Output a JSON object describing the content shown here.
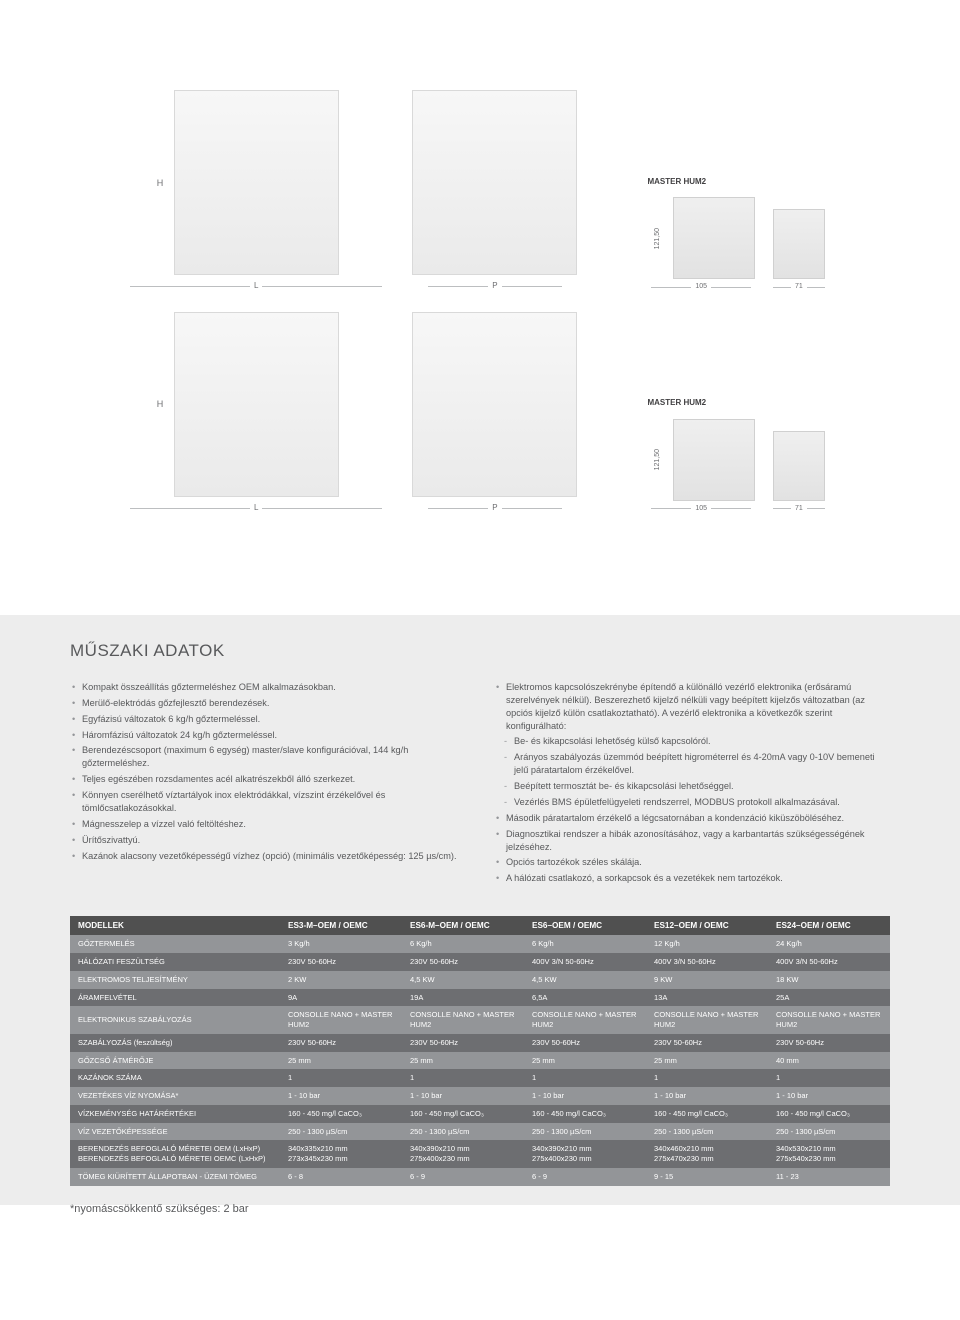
{
  "diagrams": {
    "h_label": "H",
    "l_label": "L",
    "p_label": "P",
    "vertical_dim": "121,50",
    "dim_105": "105",
    "dim_71": "71",
    "controller_title": "MASTER HUM2"
  },
  "section_title": "MŰSZAKI ADATOK",
  "left_bullets": [
    "Kompakt összeállítás gőztermeléshez OEM alkalmazásokban.",
    "Merülő-elektródás gőzfejlesztő berendezések.",
    "Egyfázisú változatok 6 kg/h gőztermeléssel.",
    "Háromfázisú változatok 24 kg/h gőztermeléssel.",
    "Berendezéscsoport (maximum 6 egység) master/slave konfigurációval, 144 kg/h gőztermeléshez.",
    "Teljes egészében rozsdamentes acél alkatrészekből álló szerkezet.",
    "Könnyen cserélhető víztartályok inox elektródákkal, vízszint érzékelővel és tömlőcsatlakozásokkal.",
    "Mágnesszelep a vízzel való feltöltéshez.",
    "Ürítőszivattyú.",
    "Kazánok alacsony vezetőképességű vízhez (opció) (minimális vezetőképesség: 125 µs/cm)."
  ],
  "right_bullets_main": [
    "Elektromos kapcsolószekrénybe építendő a különálló vezérlő elektronika (erősáramú szerelvények nélkül). Beszerezhető kijelző nélküli vagy beépített kijelzős változatban (az opciós kijelző külön csatlakoztatható). A vezérlő elektronika a következők szerint konfigurálható:"
  ],
  "right_sub": [
    "Be- és kikapcsolási lehetőség külső kapcsolóról.",
    "Arányos szabályozás üzemmód beépített higrométerrel és 4-20mA vagy 0-10V bemeneti jelű páratartalom érzékelővel.",
    "Beépített termosztát be- és kikapcsolási lehetőséggel.",
    "Vezérlés BMS épületfelügyeleti rendszerrel, MODBUS protokoll alkalmazásával."
  ],
  "right_bullets_after": [
    "Második páratartalom érzékelő a légcsatornában a kondenzáció kiküszöböléséhez.",
    "Diagnosztikai rendszer a hibák azonosításához, vagy a karbantartás szükségességének jelzéséhez.",
    "Opciós tartozékok széles skálája.",
    "A hálózati csatlakozó, a sorkapcsok és a vezetékek nem tartozékok."
  ],
  "table": {
    "header_label": "MODELLEK",
    "models": [
      "ES3-M–OEM / OEMC",
      "ES6-M–OEM / OEMC",
      "ES6–OEM / OEMC",
      "ES12–OEM / OEMC",
      "ES24–OEM / OEMC"
    ],
    "rows": [
      {
        "label": "GŐZTERMELÉS",
        "vals": [
          "3 Kg/h",
          "6 Kg/h",
          "6 Kg/h",
          "12 Kg/h",
          "24 Kg/h"
        ],
        "shade": "light"
      },
      {
        "label": "HÁLÓZATI FESZÜLTSÉG",
        "vals": [
          "230V 50-60Hz",
          "230V 50-60Hz",
          "400V 3/N 50-60Hz",
          "400V 3/N 50-60Hz",
          "400V 3/N 50-60Hz"
        ],
        "shade": "dark"
      },
      {
        "label": "ELEKTROMOS TELJESÍTMÉNY",
        "vals": [
          "2 KW",
          "4,5 KW",
          "4,5 KW",
          "9 KW",
          "18 KW"
        ],
        "shade": "light"
      },
      {
        "label": "ÁRAMFELVÉTEL",
        "vals": [
          "9A",
          "19A",
          "6,5A",
          "13A",
          "25A"
        ],
        "shade": "dark"
      },
      {
        "label": "ELEKTRONIKUS SZABÁLYOZÁS",
        "vals": [
          "CONSOLLE NANO + MASTER HUM2",
          "CONSOLLE NANO + MASTER HUM2",
          "CONSOLLE NANO + MASTER HUM2",
          "CONSOLLE NANO + MASTER HUM2",
          "CONSOLLE NANO + MASTER HUM2"
        ],
        "shade": "light"
      },
      {
        "label": "SZABÁLYOZÁS (feszültség)",
        "vals": [
          "230V 50-60Hz",
          "230V 50-60Hz",
          "230V 50-60Hz",
          "230V 50-60Hz",
          "230V 50-60Hz"
        ],
        "shade": "dark"
      },
      {
        "label": "GŐZCSŐ ÁTMÉRŐJE",
        "vals": [
          "25 mm",
          "25 mm",
          "25 mm",
          "25 mm",
          "40 mm"
        ],
        "shade": "light"
      },
      {
        "label": "KAZÁNOK SZÁMA",
        "vals": [
          "1",
          "1",
          "1",
          "1",
          "1"
        ],
        "shade": "dark"
      },
      {
        "label": "VEZETÉKES VÍZ NYOMÁSA*",
        "vals": [
          "1 - 10 bar",
          "1 - 10 bar",
          "1 - 10 bar",
          "1 - 10 bar",
          "1 - 10 bar"
        ],
        "shade": "light"
      },
      {
        "label": "VÍZKEMÉNYSÉG HATÁRÉRTÉKEI",
        "vals": [
          "160 - 450 mg/l CaCO₃",
          "160 - 450 mg/l CaCO₃",
          "160 - 450 mg/l CaCO₃",
          "160 - 450 mg/l CaCO₃",
          "160 - 450 mg/l CaCO₃"
        ],
        "shade": "dark"
      },
      {
        "label": "VÍZ VEZETŐKÉPESSÉGE",
        "vals": [
          "250 - 1300 µS/cm",
          "250 - 1300 µS/cm",
          "250 - 1300 µS/cm",
          "250 - 1300 µS/cm",
          "250 - 1300 µS/cm"
        ],
        "shade": "light"
      },
      {
        "label": "BERENDEZÉS BEFOGLALÓ MÉRETEI OEM (LxHxP)\nBERENDEZÉS BEFOGLALÓ MÉRETEI OEMC (LxHxP)",
        "vals": [
          "340x335x210 mm\n273x345x230 mm",
          "340x390x210 mm\n275x400x230 mm",
          "340x390x210 mm\n275x400x230 mm",
          "340x460x210 mm\n275x470x230 mm",
          "340x530x210 mm\n275x540x230 mm"
        ],
        "shade": "dark"
      },
      {
        "label": "TÖMEG KIÜRÍTETT ÁLLAPOTBAN - ÜZEMI TÖMEG",
        "vals": [
          "6 - 8",
          "6 - 9",
          "6 - 9",
          "9 - 15",
          "11 - 23"
        ],
        "shade": "light"
      }
    ]
  },
  "footnote": "*nyomáscsökkentő szükséges: 2 bar"
}
